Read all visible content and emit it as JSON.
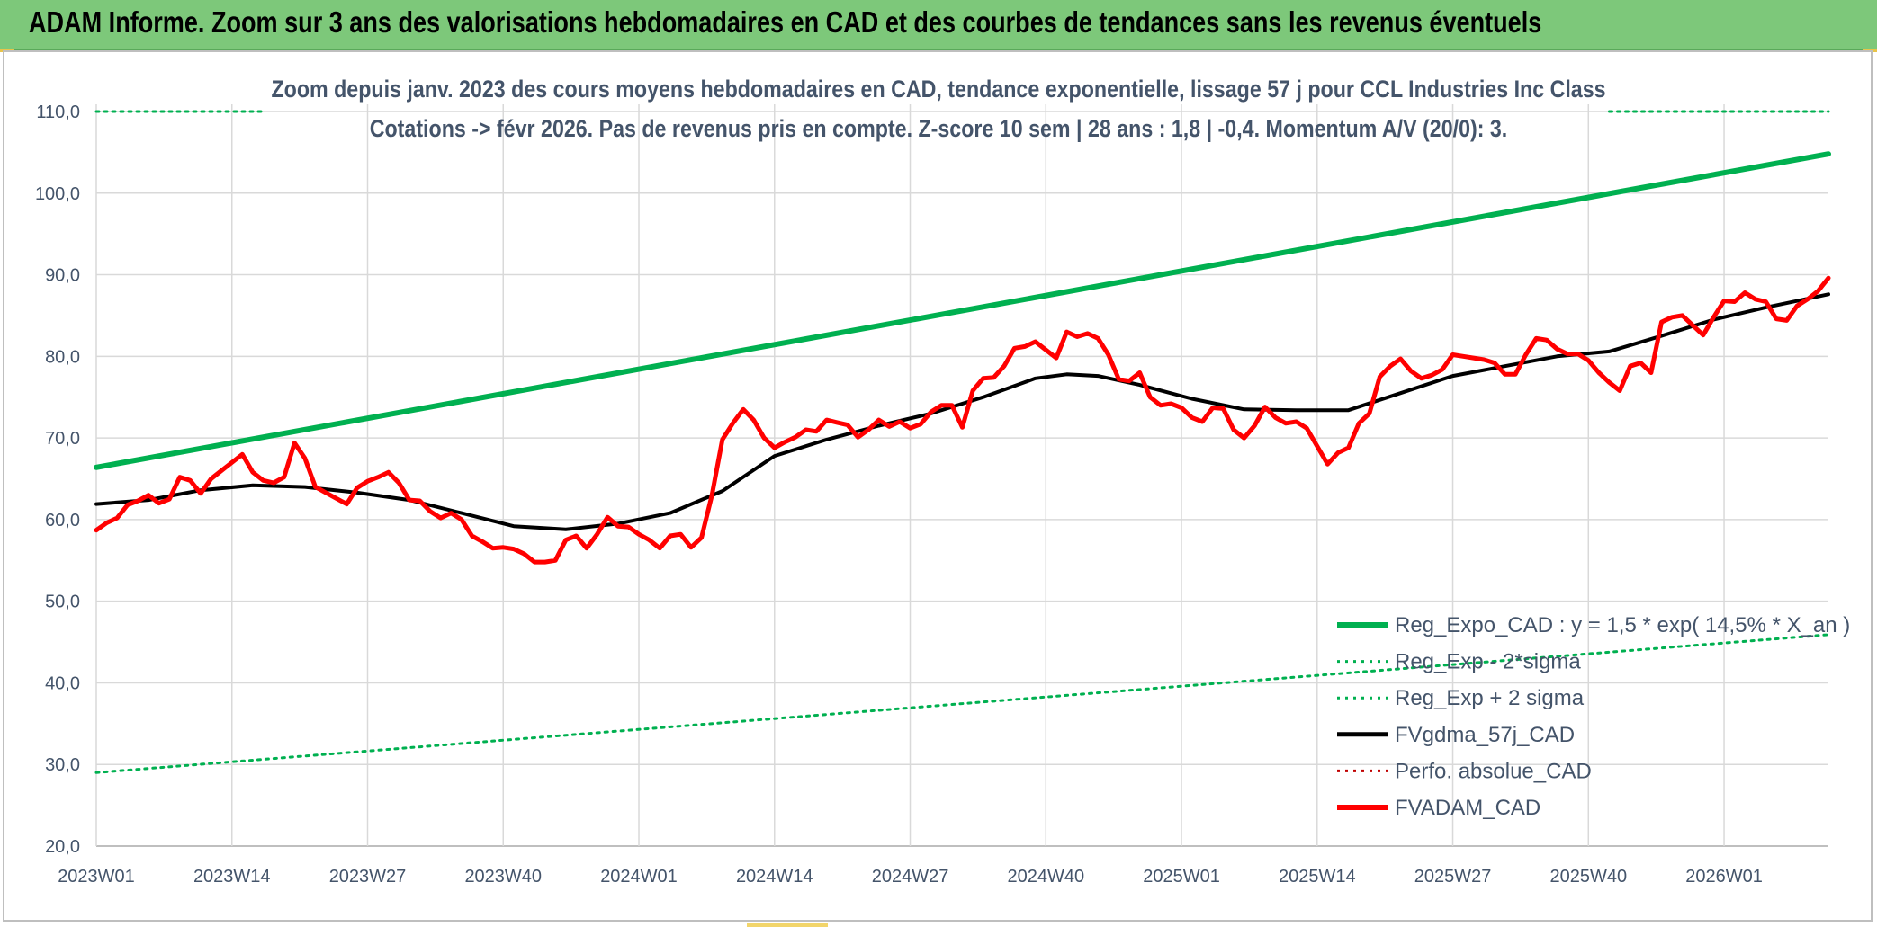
{
  "header": {
    "title": "ADAM Informe. Zoom sur 3 ans des valorisations hebdomadaires en CAD et des courbes de tendances sans les revenus éventuels"
  },
  "chart_data": {
    "type": "line",
    "title_line1": "Zoom depuis janv. 2023 des cours moyens hebdomadaires en CAD, tendance exponentielle, lissage 57 j pour CCL Industries Inc Class",
    "title_line2": "Cotations -> févr 2026. Pas de revenus pris en compte. Z-score 10 sem | 28 ans : 1,8 | -0,4. Momentum A/V (20/0): 3.",
    "ylim": [
      20,
      110
    ],
    "y_ticks": [
      20,
      30,
      40,
      50,
      60,
      70,
      80,
      90,
      100,
      110
    ],
    "y_tick_labels": [
      "20,0",
      "30,0",
      "40,0",
      "50,0",
      "60,0",
      "70,0",
      "80,0",
      "90,0",
      "100,0",
      "110,0"
    ],
    "x_tick_labels": [
      "2023W01",
      "2023W14",
      "2023W27",
      "2023W40",
      "2024W01",
      "2024W14",
      "2024W27",
      "2024W40",
      "2025W01",
      "2025W14",
      "2025W27",
      "2025W40",
      "2026W01"
    ],
    "x_tick_index": [
      0,
      13,
      26,
      39,
      52,
      65,
      78,
      91,
      104,
      117,
      130,
      143,
      156
    ],
    "n_weeks": 166,
    "series": [
      {
        "name": "Reg_Expo_CAD : y = 1,5 * exp( 14,5% *  X_an )",
        "color": "#00b050",
        "style": "solid",
        "width": 6,
        "points": [
          [
            0,
            66.4
          ],
          [
            166,
            104.8
          ]
        ]
      },
      {
        "name": "Reg_Exp - 2*sigma",
        "color": "#00b050",
        "style": "dotted",
        "width": 3,
        "points": [
          [
            0,
            29.0
          ],
          [
            166,
            45.9
          ]
        ]
      },
      {
        "name": "Reg_Exp + 2 sigma",
        "color": "#00b050",
        "style": "dotted",
        "width": 3,
        "points": [
          [
            0,
            110.0
          ],
          [
            16,
            110.0
          ],
          [
            145,
            110.0
          ],
          [
            166,
            110.0
          ]
        ],
        "visible_segments": [
          [
            0,
            16
          ],
          [
            145,
            166
          ]
        ]
      },
      {
        "name": "FVgdma_57j_CAD",
        "color": "#000000",
        "style": "solid",
        "width": 4,
        "points": [
          [
            0,
            61.9
          ],
          [
            5,
            62.4
          ],
          [
            10,
            63.6
          ],
          [
            15,
            64.2
          ],
          [
            20,
            64.0
          ],
          [
            25,
            63.3
          ],
          [
            30,
            62.4
          ],
          [
            35,
            60.8
          ],
          [
            40,
            59.2
          ],
          [
            45,
            58.8
          ],
          [
            50,
            59.5
          ],
          [
            55,
            60.8
          ],
          [
            60,
            63.5
          ],
          [
            65,
            67.8
          ],
          [
            70,
            69.8
          ],
          [
            75,
            71.5
          ],
          [
            80,
            73.0
          ],
          [
            85,
            75.0
          ],
          [
            90,
            77.3
          ],
          [
            93,
            77.8
          ],
          [
            96,
            77.6
          ],
          [
            100,
            76.5
          ],
          [
            105,
            74.8
          ],
          [
            110,
            73.5
          ],
          [
            115,
            73.4
          ],
          [
            120,
            73.4
          ],
          [
            125,
            75.5
          ],
          [
            130,
            77.6
          ],
          [
            135,
            78.8
          ],
          [
            140,
            80.0
          ],
          [
            145,
            80.6
          ],
          [
            150,
            82.5
          ],
          [
            155,
            84.5
          ],
          [
            160,
            86.0
          ],
          [
            166,
            87.6
          ]
        ]
      },
      {
        "name": "Perfo. absolue_CAD",
        "color": "#c00000",
        "style": "dotted",
        "width": 3,
        "points": []
      },
      {
        "name": "FVADAM_CAD",
        "color": "#ff0000",
        "style": "solid",
        "width": 5,
        "points": [
          [
            0,
            58.7
          ],
          [
            1,
            59.6
          ],
          [
            2,
            60.2
          ],
          [
            3,
            61.8
          ],
          [
            4,
            62.3
          ],
          [
            5,
            63.0
          ],
          [
            6,
            62.0
          ],
          [
            7,
            62.5
          ],
          [
            8,
            65.2
          ],
          [
            9,
            64.8
          ],
          [
            10,
            63.2
          ],
          [
            11,
            65.0
          ],
          [
            12,
            66.0
          ],
          [
            13,
            67.0
          ],
          [
            14,
            68.0
          ],
          [
            15,
            65.8
          ],
          [
            16,
            64.8
          ],
          [
            17,
            64.5
          ],
          [
            18,
            65.2
          ],
          [
            19,
            69.4
          ],
          [
            20,
            67.5
          ],
          [
            21,
            64.0
          ],
          [
            22,
            63.3
          ],
          [
            23,
            62.6
          ],
          [
            24,
            61.9
          ],
          [
            25,
            63.9
          ],
          [
            26,
            64.7
          ],
          [
            27,
            65.2
          ],
          [
            28,
            65.8
          ],
          [
            29,
            64.5
          ],
          [
            30,
            62.4
          ],
          [
            31,
            62.3
          ],
          [
            32,
            61.0
          ],
          [
            33,
            60.2
          ],
          [
            34,
            60.8
          ],
          [
            35,
            60.0
          ],
          [
            36,
            58.0
          ],
          [
            37,
            57.3
          ],
          [
            38,
            56.5
          ],
          [
            39,
            56.6
          ],
          [
            40,
            56.4
          ],
          [
            41,
            55.8
          ],
          [
            42,
            54.8
          ],
          [
            43,
            54.8
          ],
          [
            44,
            55.0
          ],
          [
            45,
            57.5
          ],
          [
            46,
            58.0
          ],
          [
            47,
            56.5
          ],
          [
            48,
            58.2
          ],
          [
            49,
            60.3
          ],
          [
            50,
            59.2
          ],
          [
            51,
            59.1
          ],
          [
            52,
            58.2
          ],
          [
            53,
            57.5
          ],
          [
            54,
            56.5
          ],
          [
            55,
            58.0
          ],
          [
            56,
            58.2
          ],
          [
            57,
            56.6
          ],
          [
            58,
            57.8
          ],
          [
            59,
            63.0
          ],
          [
            60,
            69.8
          ],
          [
            61,
            71.8
          ],
          [
            62,
            73.5
          ],
          [
            63,
            72.2
          ],
          [
            64,
            70.0
          ],
          [
            65,
            68.8
          ],
          [
            66,
            69.5
          ],
          [
            67,
            70.1
          ],
          [
            68,
            71.0
          ],
          [
            69,
            70.8
          ],
          [
            70,
            72.2
          ],
          [
            71,
            71.9
          ],
          [
            72,
            71.6
          ],
          [
            73,
            70.1
          ],
          [
            74,
            71.0
          ],
          [
            75,
            72.2
          ],
          [
            76,
            71.4
          ],
          [
            77,
            72.0
          ],
          [
            78,
            71.2
          ],
          [
            79,
            71.7
          ],
          [
            80,
            73.2
          ],
          [
            81,
            74.0
          ],
          [
            82,
            74.0
          ],
          [
            83,
            71.3
          ],
          [
            84,
            75.8
          ],
          [
            85,
            77.3
          ],
          [
            86,
            77.4
          ],
          [
            87,
            78.8
          ],
          [
            88,
            81.0
          ],
          [
            89,
            81.2
          ],
          [
            90,
            81.8
          ],
          [
            91,
            80.8
          ],
          [
            92,
            79.8
          ],
          [
            93,
            83.0
          ],
          [
            94,
            82.4
          ],
          [
            95,
            82.8
          ],
          [
            96,
            82.2
          ],
          [
            97,
            80.2
          ],
          [
            98,
            77.2
          ],
          [
            99,
            77.0
          ],
          [
            100,
            78.0
          ],
          [
            101,
            75.0
          ],
          [
            102,
            74.0
          ],
          [
            103,
            74.2
          ],
          [
            104,
            73.7
          ],
          [
            105,
            72.5
          ],
          [
            106,
            72.0
          ],
          [
            107,
            73.7
          ],
          [
            108,
            73.6
          ],
          [
            109,
            71.0
          ],
          [
            110,
            70.0
          ],
          [
            111,
            71.5
          ],
          [
            112,
            73.8
          ],
          [
            113,
            72.5
          ],
          [
            114,
            71.8
          ],
          [
            115,
            72.0
          ],
          [
            116,
            71.2
          ],
          [
            117,
            69.0
          ],
          [
            118,
            66.8
          ],
          [
            119,
            68.2
          ],
          [
            120,
            68.8
          ],
          [
            121,
            71.8
          ],
          [
            122,
            73.0
          ],
          [
            123,
            77.5
          ],
          [
            124,
            78.8
          ],
          [
            125,
            79.7
          ],
          [
            126,
            78.2
          ],
          [
            127,
            77.3
          ],
          [
            128,
            77.7
          ],
          [
            129,
            78.4
          ],
          [
            130,
            80.2
          ],
          [
            131,
            80.0
          ],
          [
            132,
            79.8
          ],
          [
            133,
            79.6
          ],
          [
            134,
            79.2
          ],
          [
            135,
            77.8
          ],
          [
            136,
            77.8
          ],
          [
            137,
            80.2
          ],
          [
            138,
            82.2
          ],
          [
            139,
            82.0
          ],
          [
            140,
            80.9
          ],
          [
            141,
            80.3
          ],
          [
            142,
            80.3
          ],
          [
            143,
            79.5
          ],
          [
            144,
            78.0
          ],
          [
            145,
            76.8
          ],
          [
            146,
            75.8
          ],
          [
            147,
            78.8
          ],
          [
            148,
            79.2
          ],
          [
            149,
            78.0
          ],
          [
            150,
            84.2
          ],
          [
            151,
            84.8
          ],
          [
            152,
            85.0
          ],
          [
            153,
            83.8
          ],
          [
            154,
            82.6
          ],
          [
            155,
            84.8
          ],
          [
            156,
            86.8
          ],
          [
            157,
            86.7
          ],
          [
            158,
            87.8
          ],
          [
            159,
            87.0
          ],
          [
            160,
            86.7
          ],
          [
            161,
            84.6
          ],
          [
            162,
            84.4
          ],
          [
            163,
            86.2
          ],
          [
            164,
            87.0
          ],
          [
            165,
            88.0
          ],
          [
            166,
            89.6
          ]
        ]
      }
    ],
    "legend_position": "bottom-right"
  }
}
